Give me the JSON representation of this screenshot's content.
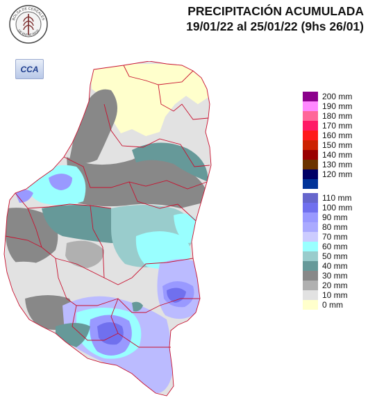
{
  "header": {
    "title": "PRECIPITACIÓN ACUMULADA",
    "period": "19/01/22 al 25/01/22 (9hs 26/01)"
  },
  "logo": {
    "top_text": "BOLSA DE CEREALES",
    "bottom_text": "DE ENTRE RIOS",
    "icon": "wheat-seal-icon"
  },
  "cca_badge": {
    "label": "CCA"
  },
  "legend": [
    {
      "label": "200 mm",
      "color": "#8b008b"
    },
    {
      "label": "190 mm",
      "color": "#ff88ff"
    },
    {
      "label": "180 mm",
      "color": "#ff6699"
    },
    {
      "label": "170 mm",
      "color": "#ff1a66"
    },
    {
      "label": "160 mm",
      "color": "#ff1a1a"
    },
    {
      "label": "150 mm",
      "color": "#cc2200"
    },
    {
      "label": "140 mm",
      "color": "#990000"
    },
    {
      "label": "130 mm",
      "color": "#6b0000"
    },
    {
      "label": "120 mm",
      "color": "#6b3300"
    },
    {
      "label": "110 mm",
      "color": "#000066"
    },
    {
      "label": "100 mm",
      "color": "#003399"
    },
    {
      "label": "90 mm",
      "color": "#6666cc"
    },
    {
      "label": "80 mm",
      "color": "#7070ee"
    },
    {
      "label": "70 mm",
      "color": "#9999ff"
    },
    {
      "label": "60 mm",
      "color": "#bbbbff"
    },
    {
      "label": "50 mm",
      "color": "#99ffff"
    },
    {
      "label": "40 mm",
      "color": "#99cccc"
    },
    {
      "label": "30 mm",
      "color": "#669999"
    },
    {
      "label": "20 mm",
      "color": "#888888"
    },
    {
      "label": "10 mm",
      "color": "#b0b0b0"
    },
    {
      "label": "0 mm",
      "color": "#e2e2e2"
    },
    {
      "label": "",
      "color": "#ffffcc"
    }
  ],
  "legend_labels_shifted": [
    "200 mm",
    "190 mm",
    "180 mm",
    "170 mm",
    "160 mm",
    "150 mm",
    "140 mm",
    "130 mm",
    "120 mm",
    "110 mm",
    "100 mm",
    "90 mm",
    "80 mm",
    "70 mm",
    "60 mm",
    "50 mm",
    "40 mm",
    "30 mm",
    "20 mm",
    "10 mm",
    "0 mm"
  ]
}
